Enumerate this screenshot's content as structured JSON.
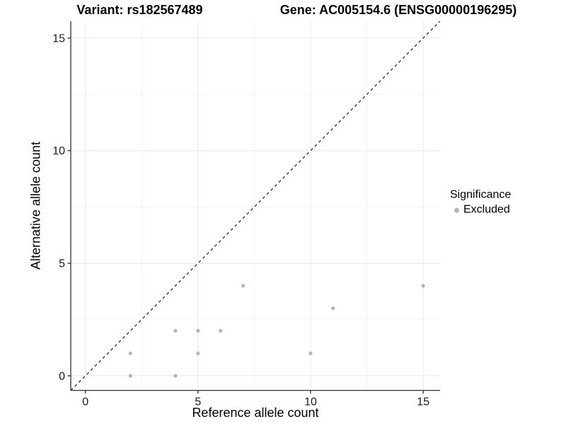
{
  "chart_data": {
    "type": "scatter",
    "title_left": "Variant: rs182567489",
    "title_right": "Gene: AC005154.6 (ENSG00000196295)",
    "xlabel": "Reference allele count",
    "ylabel": "Alternative allele count",
    "xlim": [
      -0.65,
      15.75
    ],
    "ylim": [
      -0.65,
      15.75
    ],
    "xticks": [
      0,
      5,
      10,
      15
    ],
    "yticks": [
      0,
      5,
      10,
      15
    ],
    "x_minor": [
      2.5,
      7.5,
      12.5
    ],
    "y_minor": [
      2.5,
      7.5,
      12.5
    ],
    "grid": true,
    "identity_line": {
      "style": "dashed",
      "from": [
        -0.65,
        -0.65
      ],
      "to": [
        15.75,
        15.75
      ],
      "color": "#1a1a1a"
    },
    "series": [
      {
        "name": "Excluded",
        "color": "#b5b5b5",
        "points": [
          [
            2,
            0
          ],
          [
            2,
            1
          ],
          [
            4,
            0
          ],
          [
            4,
            2
          ],
          [
            5,
            1
          ],
          [
            5,
            2
          ],
          [
            6,
            2
          ],
          [
            7,
            4
          ],
          [
            10,
            1
          ],
          [
            11,
            3
          ],
          [
            15,
            4
          ]
        ]
      }
    ],
    "legend": {
      "title": "Significance",
      "position": "right",
      "items": [
        {
          "label": "Excluded",
          "color": "#b5b5b5",
          "marker": "circle"
        }
      ]
    }
  },
  "colors": {
    "axis": "#2e2e2e",
    "tick_label": "#1a1a1a",
    "grid_major": "#e9e9e9",
    "grid_minor": "#f4f4f4",
    "background": "#ffffff"
  }
}
